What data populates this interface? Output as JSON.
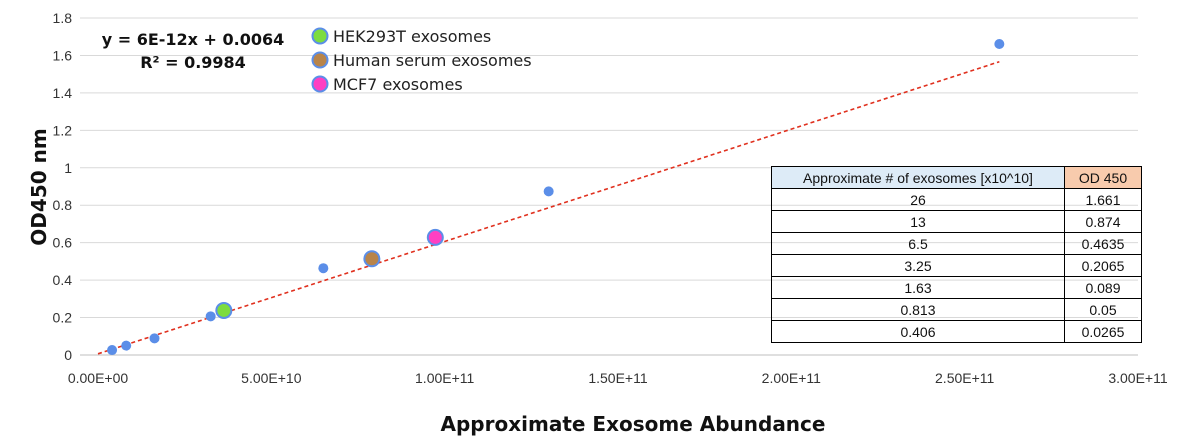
{
  "chart_data": {
    "type": "scatter",
    "xlabel": "Approximate Exosome Abundance",
    "ylabel": "OD450 nm",
    "xlim": [
      0,
      300000000000
    ],
    "ylim": [
      0,
      1.8
    ],
    "x_ticks": [
      0,
      50000000000,
      100000000000,
      150000000000,
      200000000000,
      250000000000,
      300000000000
    ],
    "x_tick_labels": [
      "0.00E+00",
      "5.00E+10",
      "1.00E+11",
      "1.50E+11",
      "2.00E+11",
      "2.50E+11",
      "3.00E+11"
    ],
    "y_ticks": [
      0,
      0.2,
      0.4,
      0.6,
      0.8,
      1,
      1.2,
      1.4,
      1.6,
      1.8
    ],
    "y_tick_labels": [
      "0",
      "0.2",
      "0.4",
      "0.6",
      "0.8",
      "1",
      "1.2",
      "1.4",
      "1.6",
      "1.8"
    ],
    "grid": "horizontal",
    "series": [
      {
        "color": "#5b8ee8",
        "points": [
          {
            "x": 4060000000,
            "y": 0.0265
          },
          {
            "x": 8130000000,
            "y": 0.05
          },
          {
            "x": 16300000000,
            "y": 0.089
          },
          {
            "x": 32500000000,
            "y": 0.2065
          },
          {
            "x": 65000000000,
            "y": 0.4635
          },
          {
            "x": 130000000000,
            "y": 0.874
          },
          {
            "x": 260000000000,
            "y": 1.661
          }
        ]
      },
      {
        "name": "HEK293T exosomes",
        "color": "#7ddc3f",
        "points": [
          {
            "x": 36300000000,
            "y": 0.238
          }
        ]
      },
      {
        "name": "Human serum exosomes",
        "color": "#b8844a",
        "points": [
          {
            "x": 79000000000,
            "y": 0.514
          }
        ]
      },
      {
        "name": "MCF7 exosomes",
        "color": "#ff3fc2",
        "points": [
          {
            "x": 97300000000,
            "y": 0.628
          }
        ]
      }
    ],
    "trendline": {
      "slope": 6e-12,
      "intercept": 0.0064,
      "x_range": [
        0,
        260000000000
      ],
      "color": "#e0301e",
      "style": "dashed"
    },
    "annotations": {
      "equation": "y = 6E-12x + 0.0064",
      "r_squared": "R² = 0.9984"
    },
    "legend_placement": "top-center"
  },
  "table": {
    "headers": [
      "Approximate # of exosomes [x10^10]",
      "OD 450"
    ],
    "rows": [
      [
        "26",
        "1.661"
      ],
      [
        "13",
        "0.874"
      ],
      [
        "6.5",
        "0.4635"
      ],
      [
        "3.25",
        "0.2065"
      ],
      [
        "1.63",
        "0.089"
      ],
      [
        "0.813",
        "0.05"
      ],
      [
        "0.406",
        "0.0265"
      ]
    ]
  }
}
